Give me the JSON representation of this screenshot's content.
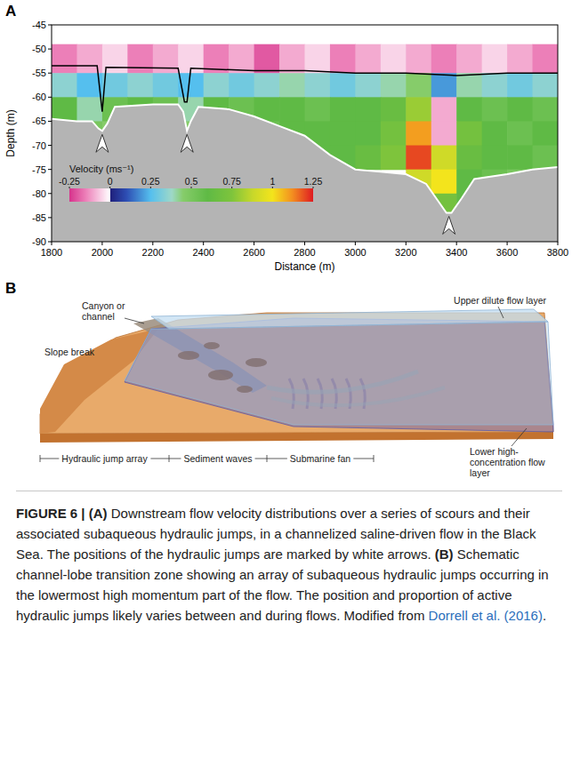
{
  "chart_data": {
    "type": "heatmap",
    "panel_label": "A",
    "xlabel": "Distance (m)",
    "ylabel": "Depth (m)",
    "xlim": [
      1800,
      3800
    ],
    "xticks": [
      1800,
      2000,
      2200,
      2400,
      2600,
      2800,
      3000,
      3200,
      3400,
      3600,
      3800
    ],
    "ylim": [
      -90,
      -45
    ],
    "yticks": [
      -90,
      -85,
      -80,
      -75,
      -70,
      -65,
      -60,
      -55,
      -50,
      -45
    ],
    "x_edges": [
      1800,
      1900,
      2000,
      2100,
      2200,
      2300,
      2400,
      2500,
      2600,
      2700,
      2800,
      2900,
      3000,
      3100,
      3200,
      3300,
      3400,
      3500,
      3600,
      3700,
      3800
    ],
    "y_edges": [
      -49,
      -55,
      -60,
      -65,
      -70,
      -75,
      -80,
      -85
    ],
    "cells": [
      [
        -0.15,
        -0.1,
        -0.05,
        -0.15,
        -0.1,
        -0.05,
        -0.15,
        -0.1,
        -0.2,
        -0.1,
        -0.05,
        -0.15,
        -0.1,
        -0.05,
        -0.1,
        -0.15,
        -0.1,
        -0.05,
        -0.1,
        -0.15
      ],
      [
        0.35,
        0.25,
        0.3,
        0.35,
        0.3,
        0.25,
        0.35,
        0.3,
        0.35,
        0.4,
        0.35,
        0.3,
        0.35,
        0.4,
        0.45,
        0.2,
        0.4,
        0.35,
        0.3,
        0.35
      ],
      [
        0.6,
        0.4,
        0.55,
        0.6,
        0.55,
        0.4,
        0.6,
        0.55,
        0.6,
        0.6,
        0.55,
        0.6,
        0.6,
        0.65,
        0.8,
        -0.1,
        0.6,
        0.55,
        0.6,
        0.55
      ],
      [
        null,
        0.5,
        0.45,
        null,
        null,
        0.45,
        null,
        null,
        0.55,
        0.6,
        0.6,
        0.6,
        0.6,
        0.7,
        1.1,
        -0.1,
        0.7,
        0.6,
        0.55,
        0.6
      ],
      [
        null,
        null,
        null,
        null,
        null,
        null,
        null,
        null,
        null,
        null,
        0.6,
        0.6,
        0.65,
        0.75,
        1.2,
        0.9,
        0.65,
        0.6,
        0.6,
        0.55
      ],
      [
        null,
        null,
        null,
        null,
        null,
        null,
        null,
        null,
        null,
        null,
        null,
        null,
        null,
        null,
        0.9,
        1.0,
        0.6,
        0.55,
        0.5,
        null
      ],
      [
        null,
        null,
        null,
        null,
        null,
        null,
        null,
        null,
        null,
        null,
        null,
        null,
        null,
        null,
        null,
        0.7,
        0.6,
        null,
        null,
        null
      ]
    ],
    "colorbar": {
      "label": "Velocity (ms⁻¹)",
      "range": [
        -0.25,
        1.25
      ],
      "ticks": [
        -0.25,
        0,
        0.25,
        0.5,
        0.75,
        1,
        1.25
      ]
    },
    "bed": {
      "x": [
        1800,
        1900,
        1960,
        1985,
        2000,
        2020,
        2050,
        2200,
        2300,
        2320,
        2335,
        2350,
        2380,
        2500,
        2600,
        2700,
        2800,
        2900,
        3000,
        3100,
        3200,
        3280,
        3320,
        3360,
        3380,
        3420,
        3470,
        3600,
        3700,
        3800
      ],
      "y": [
        -64.5,
        -65,
        -65,
        -66.5,
        -67,
        -65.5,
        -62,
        -61.5,
        -61.5,
        -63,
        -67,
        -65,
        -62,
        -62.5,
        -64,
        -66,
        -68,
        -72,
        -75,
        -75.5,
        -76,
        -78,
        -81,
        -84,
        -84,
        -81,
        -77,
        -76,
        -75,
        -74.5
      ]
    },
    "interface": {
      "x": [
        1800,
        1980,
        2000,
        2015,
        2300,
        2325,
        2335,
        2350,
        2600,
        2800,
        3000,
        3200,
        3400,
        3600,
        3800
      ],
      "y": [
        -53.5,
        -53.5,
        -63,
        -53.8,
        -54,
        -61,
        -61,
        -54,
        -54.5,
        -54.5,
        -55,
        -55,
        -55.5,
        -55,
        -55
      ]
    },
    "jumps": [
      2000,
      2335,
      3370
    ]
  },
  "schematic": {
    "panel_label": "B",
    "channel": "Canyon or channel",
    "slope_break": "Slope break",
    "upper_layer": "Upper dilute flow layer",
    "lower_layer": "Lower high-concentration flow layer",
    "zones": [
      "Hydraulic jump array",
      "Sediment waves",
      "Submarine fan"
    ]
  },
  "caption": [
    {
      "text": "FIGURE 6 | ",
      "style": "bold"
    },
    {
      "text": "(A)",
      "style": "bold"
    },
    {
      "text": " Downstream flow velocity distributions over a series of scours and their associated subaqueous hydraulic jumps, in a channelized saline-driven flow in the Black Sea. The positions of the hydraulic jumps are marked by white arrows. ",
      "style": "plain"
    },
    {
      "text": "(B)",
      "style": "bold"
    },
    {
      "text": " Schematic channel-lobe transition zone showing an array of subaqueous hydraulic jumps occurring in the lowermost high momentum part of the flow. The position and proportion of active hydraulic jumps likely varies between and during flows. Modified from ",
      "style": "plain"
    },
    {
      "text": "Dorrell et al. (2016)",
      "style": "link"
    },
    {
      "text": ".",
      "style": "plain"
    }
  ]
}
